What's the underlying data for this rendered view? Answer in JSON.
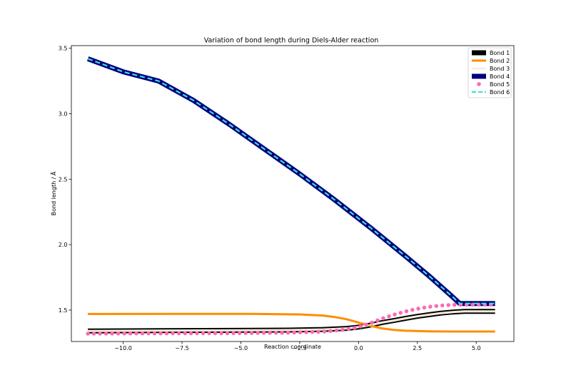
{
  "chart_data": {
    "type": "line",
    "title": "Variation of bond length during Diels-Alder reaction",
    "xlabel": "Reaction coordinate",
    "ylabel": "Bond length / Å",
    "xlim": [
      -12.2,
      6.6
    ],
    "ylim": [
      1.26,
      3.52
    ],
    "xticks": [
      -10.0,
      -7.5,
      -5.0,
      -2.5,
      0.0,
      2.5,
      5.0
    ],
    "xtick_labels": [
      "−10.0",
      "−7.5",
      "−5.0",
      "−2.5",
      "0.0",
      "2.5",
      "5.0"
    ],
    "yticks": [
      1.5,
      2.0,
      2.5,
      3.0,
      3.5
    ],
    "ytick_labels": [
      "1.5",
      "2.0",
      "2.5",
      "3.0",
      "3.5"
    ],
    "grid": false,
    "legend_position": "top-right",
    "series": [
      {
        "name": "Bond 1",
        "color": "#000000",
        "style": "thick-solid-outlined",
        "x": [
          -11.5,
          -8.5,
          -5.5,
          -3.0,
          -1.5,
          -0.5,
          0.0,
          0.5,
          1.0,
          1.5,
          2.0,
          2.5,
          3.0,
          3.5,
          4.0,
          4.5,
          5.0,
          5.8
        ],
        "y": [
          1.34,
          1.343,
          1.345,
          1.347,
          1.352,
          1.36,
          1.37,
          1.385,
          1.405,
          1.42,
          1.437,
          1.452,
          1.465,
          1.477,
          1.485,
          1.49,
          1.49,
          1.49
        ]
      },
      {
        "name": "Bond 2",
        "color": "#ff8c00",
        "style": "solid",
        "x": [
          -11.5,
          -8.0,
          -4.5,
          -2.5,
          -1.5,
          -1.0,
          -0.5,
          0.0,
          0.5,
          1.0,
          1.5,
          2.0,
          3.0,
          4.0,
          5.8
        ],
        "y": [
          1.47,
          1.471,
          1.471,
          1.467,
          1.458,
          1.447,
          1.43,
          1.405,
          1.38,
          1.36,
          1.348,
          1.342,
          1.338,
          1.336,
          1.336
        ]
      },
      {
        "name": "Bond 3",
        "color": "#ffdab9",
        "style": "thin-solid",
        "x": [
          -11.5,
          -8.5,
          -5.5,
          -3.0,
          -1.5,
          -0.5,
          0.0,
          0.5,
          1.0,
          1.5,
          2.0,
          2.5,
          3.0,
          3.5,
          4.0,
          4.5,
          5.0,
          5.8
        ],
        "y": [
          1.34,
          1.343,
          1.345,
          1.347,
          1.352,
          1.36,
          1.37,
          1.385,
          1.405,
          1.42,
          1.437,
          1.452,
          1.465,
          1.477,
          1.485,
          1.49,
          1.49,
          1.49
        ]
      },
      {
        "name": "Bond 4",
        "color": "#000080",
        "style": "thick-solid",
        "x": [
          -11.5,
          -10.0,
          -8.5,
          -7.0,
          -5.5,
          -4.0,
          -2.5,
          -1.0,
          0.5,
          2.0,
          3.0,
          3.5,
          4.0,
          4.3,
          5.0,
          5.8
        ],
        "y": [
          3.42,
          3.32,
          3.25,
          3.1,
          2.92,
          2.73,
          2.54,
          2.34,
          2.13,
          1.91,
          1.76,
          1.68,
          1.6,
          1.55,
          1.55,
          1.55
        ]
      },
      {
        "name": "Bond 5",
        "color": "#ff69b4",
        "style": "dotted-circles",
        "x": [
          -11.5,
          -8.5,
          -5.5,
          -3.0,
          -1.5,
          -0.5,
          0.0,
          0.5,
          1.0,
          1.5,
          2.0,
          2.5,
          3.0,
          3.5,
          4.0,
          4.5,
          5.0,
          5.8
        ],
        "y": [
          1.32,
          1.322,
          1.323,
          1.327,
          1.335,
          1.352,
          1.37,
          1.4,
          1.435,
          1.465,
          1.49,
          1.51,
          1.525,
          1.535,
          1.54,
          1.542,
          1.542,
          1.542
        ]
      },
      {
        "name": "Bond 6",
        "color": "#40e0d0",
        "style": "dashed",
        "x": [
          -11.5,
          -10.0,
          -8.5,
          -7.0,
          -5.5,
          -4.0,
          -2.5,
          -1.0,
          0.5,
          2.0,
          3.0,
          3.5,
          4.0,
          4.3,
          5.0,
          5.8
        ],
        "y": [
          3.42,
          3.32,
          3.25,
          3.1,
          2.92,
          2.73,
          2.54,
          2.34,
          2.13,
          1.91,
          1.76,
          1.68,
          1.6,
          1.55,
          1.55,
          1.55
        ]
      }
    ]
  }
}
